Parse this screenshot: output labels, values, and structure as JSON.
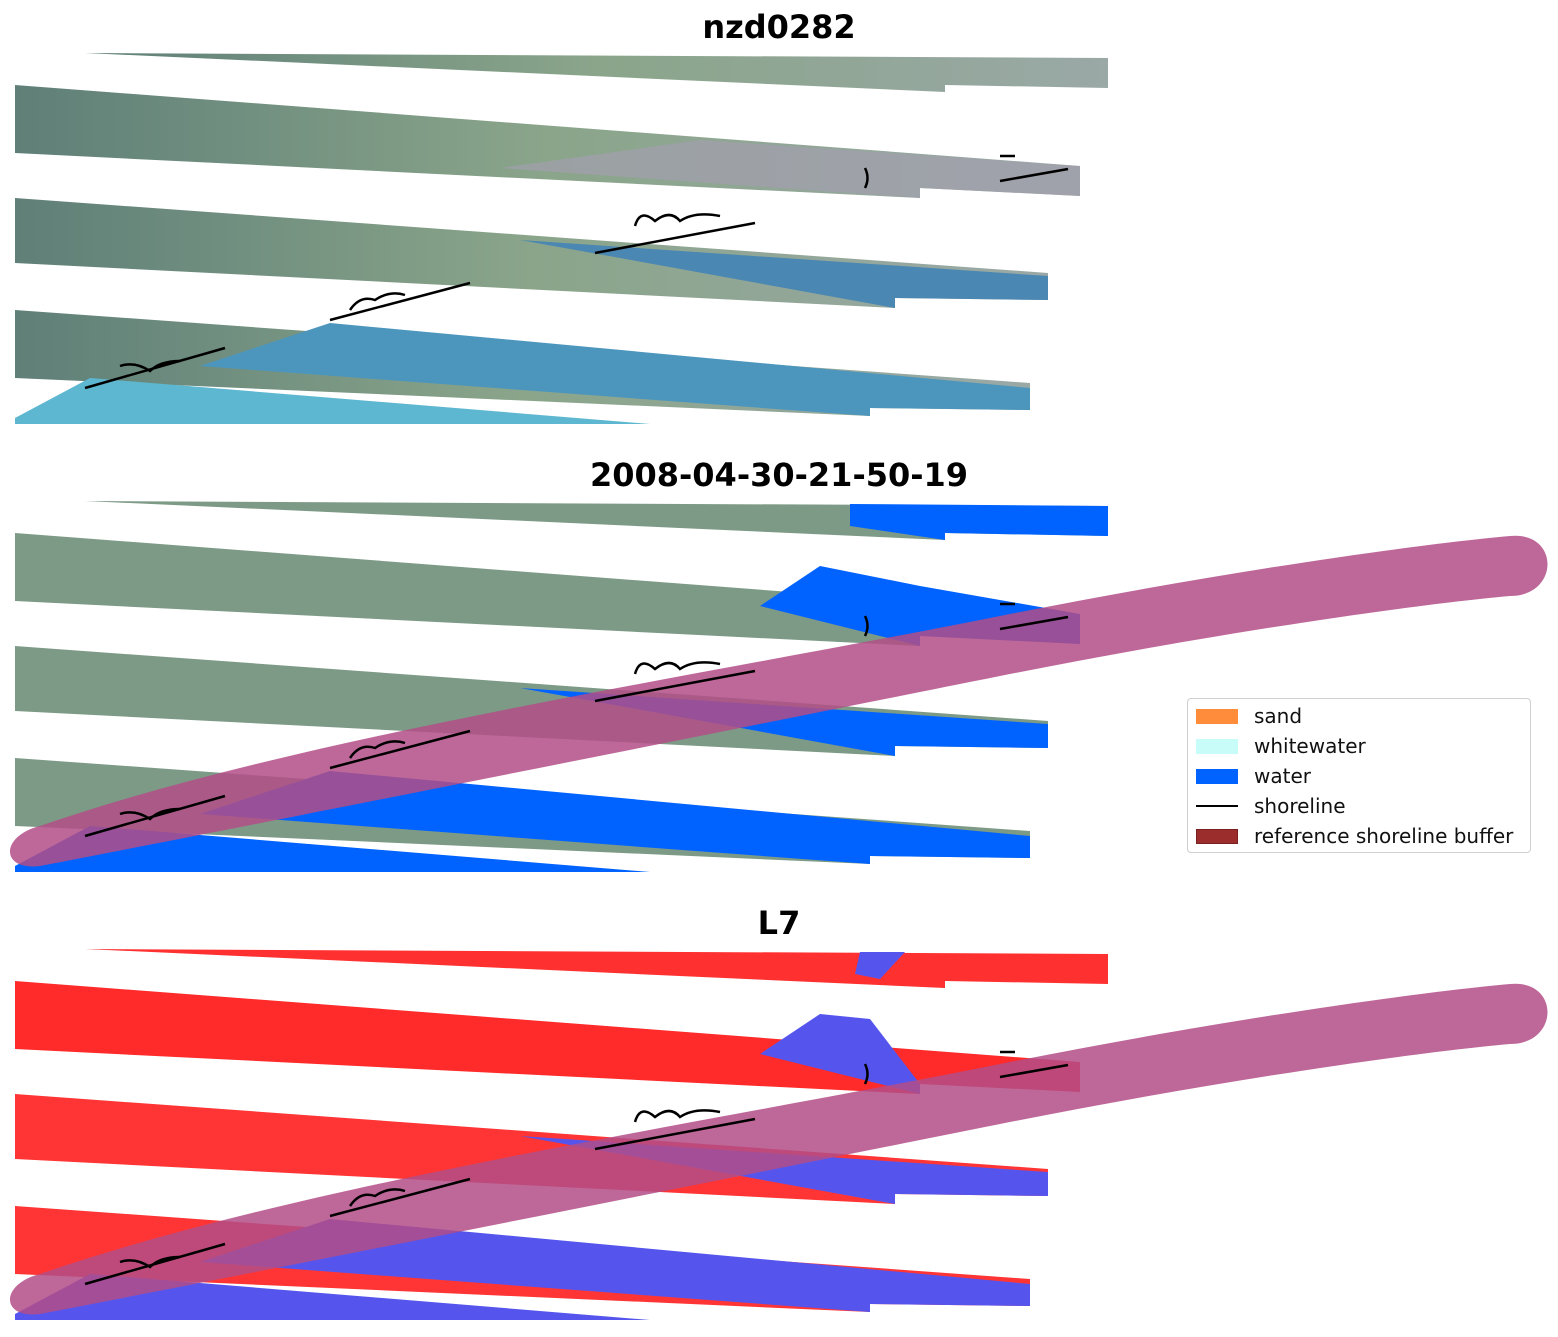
{
  "panels": [
    {
      "title": "nzd0282",
      "kind": "rgb"
    },
    {
      "title": "2008-04-30-21-50-19",
      "kind": "classified"
    },
    {
      "title": "L7",
      "kind": "index"
    }
  ],
  "legend": {
    "items": [
      {
        "label": "sand",
        "color": "#ff8c3a",
        "type": "patch"
      },
      {
        "label": "whitewater",
        "color": "#c8fcf8",
        "type": "patch"
      },
      {
        "label": "water",
        "color": "#0062ff",
        "type": "patch"
      },
      {
        "label": "shoreline",
        "color": "#000000",
        "type": "line"
      },
      {
        "label": "reference shoreline buffer",
        "color": "#9b2d2d",
        "type": "patch"
      }
    ]
  },
  "colors": {
    "land_rgb": "#7d9a86",
    "water_rgb": "#4aa0c0",
    "water_class": "#0062ff",
    "index_land": "#ff2020",
    "index_water": "#5555ee",
    "buffer_overlay": "#b34d87"
  }
}
